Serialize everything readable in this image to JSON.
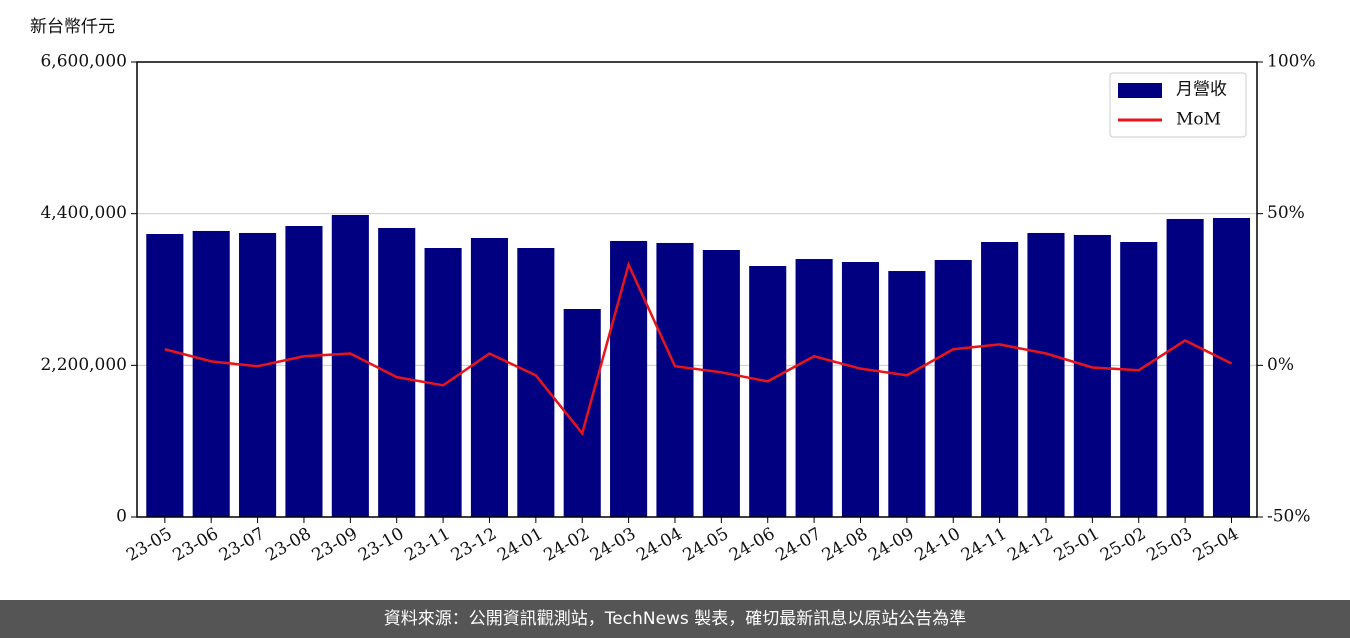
{
  "chart_data": {
    "type": "bar-line",
    "y_axis_label": "新台幣仟元",
    "categories": [
      "23-05",
      "23-06",
      "23-07",
      "23-08",
      "23-09",
      "23-10",
      "23-11",
      "23-12",
      "24-01",
      "24-02",
      "24-03",
      "24-04",
      "24-05",
      "24-06",
      "24-07",
      "24-08",
      "24-09",
      "24-10",
      "24-11",
      "24-12",
      "25-01",
      "25-02",
      "25-03",
      "25-04"
    ],
    "series": [
      {
        "name": "月營收",
        "type": "bar",
        "color": "#000080",
        "values": [
          4105000,
          4149000,
          4120000,
          4221000,
          4381000,
          4192000,
          3902000,
          4047000,
          3902000,
          3017000,
          4004000,
          3975000,
          3873000,
          3641000,
          3742000,
          3699000,
          3568000,
          3728000,
          3989000,
          4120000,
          4091000,
          3989000,
          4323000,
          4337000
        ]
      },
      {
        "name": "MoM",
        "type": "line",
        "axis": "y2",
        "color": "#e8141c",
        "values": [
          5.3,
          1.3,
          -0.3,
          3.0,
          3.9,
          -3.9,
          -6.6,
          3.9,
          -3.3,
          -22.4,
          33.2,
          -0.3,
          -2.3,
          -5.3,
          3.0,
          -1.1,
          -3.3,
          5.3,
          6.9,
          3.9,
          -0.7,
          -1.6,
          8.2,
          0.6
        ]
      }
    ],
    "ylim": [
      0,
      6600000
    ],
    "yticks": [
      {
        "value": 0,
        "label": "0"
      },
      {
        "value": 2200000,
        "label": "2,200,000"
      },
      {
        "value": 4400000,
        "label": "4,400,000"
      },
      {
        "value": 6600000,
        "label": "6,600,000"
      }
    ],
    "y2lim": [
      -50,
      100
    ],
    "y2ticks": [
      {
        "value": -50,
        "label": "-50%"
      },
      {
        "value": 0,
        "label": "0%"
      },
      {
        "value": 50,
        "label": "50%"
      },
      {
        "value": 100,
        "label": "100%"
      }
    ],
    "grid": true,
    "legend": "upper right",
    "source": "資料來源：公開資訊觀測站，TechNews 製表，確切最新訊息以原站公告為準"
  }
}
